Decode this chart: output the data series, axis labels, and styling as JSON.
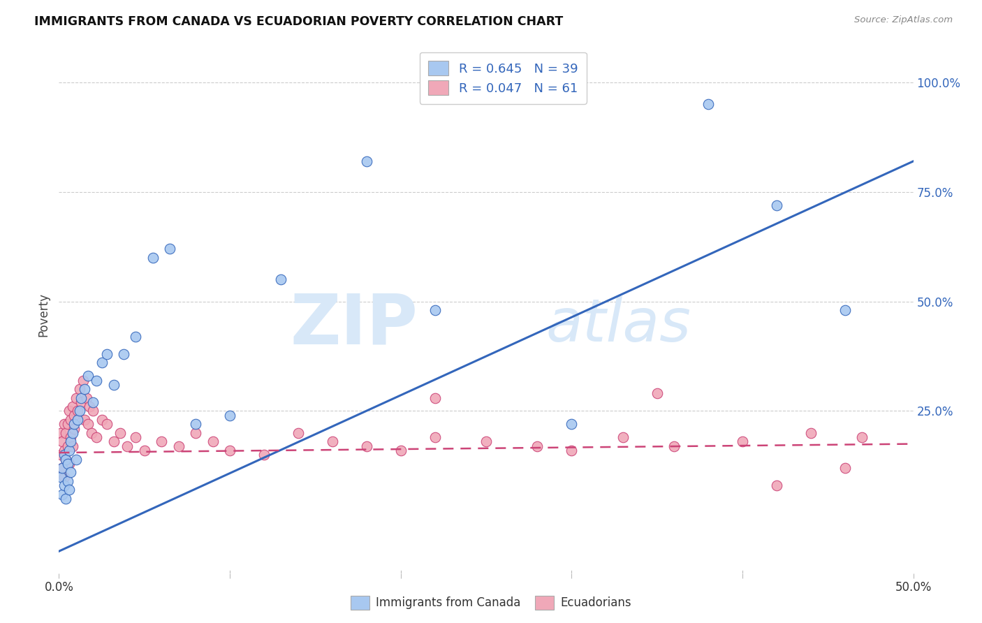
{
  "title": "IMMIGRANTS FROM CANADA VS ECUADORIAN POVERTY CORRELATION CHART",
  "source": "Source: ZipAtlas.com",
  "ylabel": "Poverty",
  "yticks_labels": [
    "25.0%",
    "50.0%",
    "75.0%",
    "100.0%"
  ],
  "ytick_vals": [
    0.25,
    0.5,
    0.75,
    1.0
  ],
  "legend_label1": "Immigrants from Canada",
  "legend_label2": "Ecuadorians",
  "legend_r1": "R = 0.645",
  "legend_n1": "N = 39",
  "legend_r2": "R = 0.047",
  "legend_n2": "N = 61",
  "color_blue": "#a8c8f0",
  "color_pink": "#f0a8b8",
  "color_blue_line": "#3366bb",
  "color_pink_line": "#cc4477",
  "watermark_zip": "ZIP",
  "watermark_atlas": "atlas",
  "watermark_color": "#d8e8f8",
  "blue_scatter_x": [
    0.001,
    0.002,
    0.002,
    0.003,
    0.003,
    0.004,
    0.004,
    0.005,
    0.005,
    0.006,
    0.006,
    0.007,
    0.007,
    0.008,
    0.009,
    0.01,
    0.011,
    0.012,
    0.013,
    0.015,
    0.017,
    0.02,
    0.022,
    0.025,
    0.028,
    0.032,
    0.038,
    0.045,
    0.055,
    0.065,
    0.08,
    0.1,
    0.13,
    0.18,
    0.22,
    0.3,
    0.38,
    0.42,
    0.46
  ],
  "blue_scatter_y": [
    0.1,
    0.06,
    0.12,
    0.08,
    0.15,
    0.05,
    0.14,
    0.09,
    0.13,
    0.07,
    0.16,
    0.11,
    0.18,
    0.2,
    0.22,
    0.14,
    0.23,
    0.25,
    0.28,
    0.3,
    0.33,
    0.27,
    0.32,
    0.36,
    0.38,
    0.31,
    0.38,
    0.42,
    0.6,
    0.62,
    0.22,
    0.24,
    0.55,
    0.82,
    0.48,
    0.22,
    0.95,
    0.72,
    0.48
  ],
  "pink_scatter_x": [
    0.001,
    0.001,
    0.002,
    0.002,
    0.003,
    0.003,
    0.003,
    0.004,
    0.004,
    0.005,
    0.005,
    0.006,
    0.006,
    0.007,
    0.007,
    0.008,
    0.008,
    0.009,
    0.009,
    0.01,
    0.011,
    0.012,
    0.013,
    0.014,
    0.015,
    0.016,
    0.017,
    0.018,
    0.019,
    0.02,
    0.022,
    0.025,
    0.028,
    0.032,
    0.036,
    0.04,
    0.045,
    0.05,
    0.06,
    0.07,
    0.08,
    0.09,
    0.1,
    0.12,
    0.14,
    0.16,
    0.18,
    0.2,
    0.22,
    0.25,
    0.28,
    0.3,
    0.33,
    0.36,
    0.4,
    0.44,
    0.47,
    0.22,
    0.35,
    0.42,
    0.46
  ],
  "pink_scatter_y": [
    0.15,
    0.2,
    0.12,
    0.18,
    0.1,
    0.16,
    0.22,
    0.14,
    0.2,
    0.17,
    0.22,
    0.13,
    0.25,
    0.19,
    0.23,
    0.17,
    0.26,
    0.21,
    0.24,
    0.28,
    0.25,
    0.3,
    0.27,
    0.32,
    0.23,
    0.28,
    0.22,
    0.26,
    0.2,
    0.25,
    0.19,
    0.23,
    0.22,
    0.18,
    0.2,
    0.17,
    0.19,
    0.16,
    0.18,
    0.17,
    0.2,
    0.18,
    0.16,
    0.15,
    0.2,
    0.18,
    0.17,
    0.16,
    0.19,
    0.18,
    0.17,
    0.16,
    0.19,
    0.17,
    0.18,
    0.2,
    0.19,
    0.28,
    0.29,
    0.08,
    0.12
  ],
  "xlim": [
    0.0,
    0.5
  ],
  "ylim": [
    -0.12,
    1.06
  ],
  "blue_line_x": [
    0.0,
    0.5
  ],
  "blue_line_y": [
    -0.07,
    0.82
  ],
  "pink_line_x": [
    0.0,
    0.5
  ],
  "pink_line_y": [
    0.155,
    0.175
  ]
}
